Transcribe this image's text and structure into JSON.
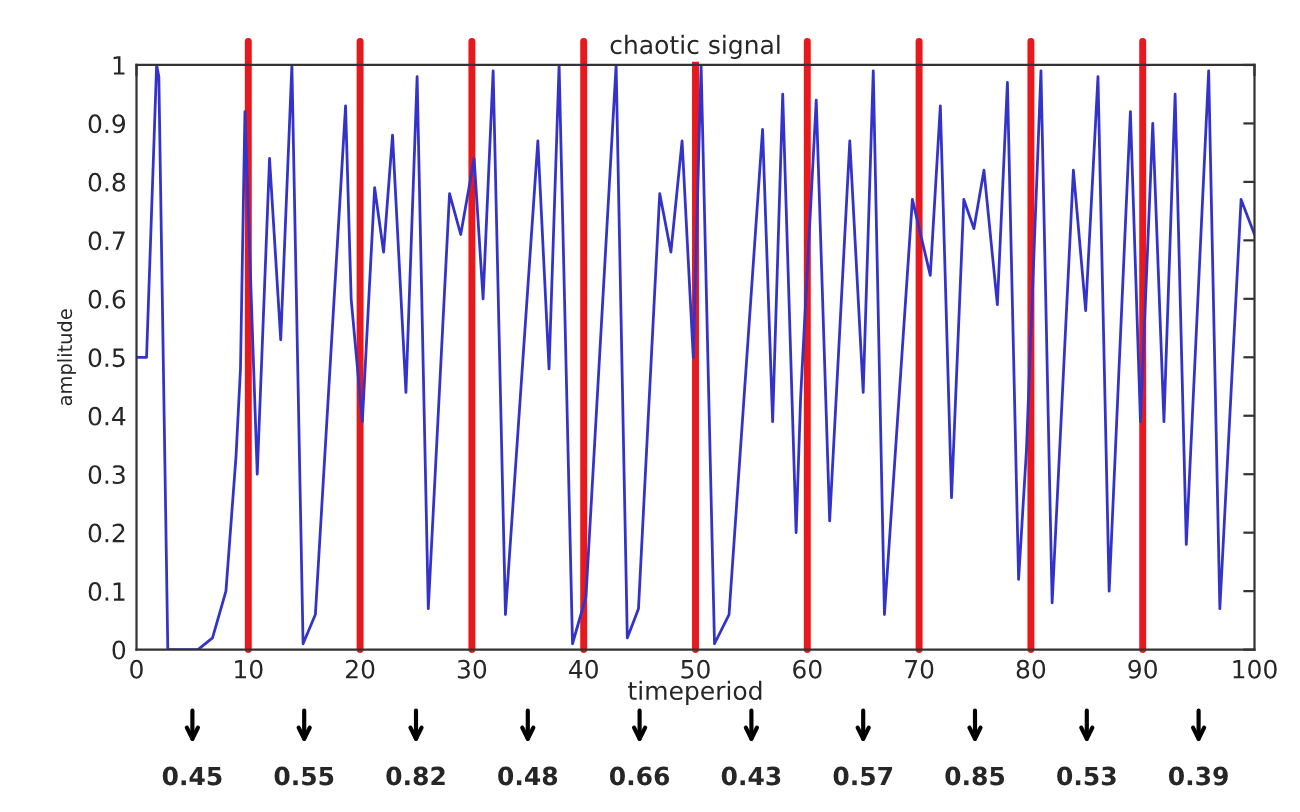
{
  "chart_data": {
    "type": "line",
    "title": "chaotic signal",
    "xlabel": "timeperiod",
    "ylabel": "amplitude",
    "x": [
      0,
      0.9,
      1.8,
      2.0,
      2.8,
      5.5,
      6.8,
      8.0,
      8.9,
      9.3,
      9.7,
      10.8,
      11.9,
      12.9,
      13.9,
      14.9,
      16.0,
      18.7,
      19.2,
      20.2,
      21.3,
      22.1,
      22.9,
      24.1,
      25.1,
      26.1,
      28.0,
      29.0,
      30.2,
      31.0,
      31.9,
      33.0,
      35.9,
      36.9,
      37.8,
      39.0,
      40.2,
      42.9,
      43.9,
      44.9,
      46.8,
      47.8,
      48.8,
      49.8,
      50.5,
      51.7,
      53.0,
      56.0,
      56.9,
      57.8,
      59.0,
      59.4,
      60.8,
      62.0,
      63.8,
      65.0,
      65.9,
      66.9,
      69.4,
      71.0,
      71.9,
      72.9,
      74.0,
      74.9,
      75.8,
      77.0,
      77.9,
      78.9,
      79.6,
      80.9,
      81.9,
      83.8,
      84.9,
      86.0,
      87.0,
      88.9,
      89.8,
      90.9,
      91.9,
      92.9,
      93.9,
      95.9,
      96.9,
      98.8,
      100
    ],
    "series": [
      {
        "color": "#3333cc",
        "values": [
          0.5,
          0.5,
          1.0,
          0.98,
          0,
          0,
          0.02,
          0.1,
          0.33,
          0.48,
          0.92,
          0.3,
          0.84,
          0.53,
          1.0,
          0.01,
          0.06,
          0.93,
          0.6,
          0.39,
          0.79,
          0.68,
          0.88,
          0.44,
          0.98,
          0.07,
          0.78,
          0.71,
          0.84,
          0.6,
          0.99,
          0.06,
          0.87,
          0.48,
          1.0,
          0.01,
          0.09,
          1.0,
          0.02,
          0.07,
          0.78,
          0.68,
          0.87,
          0.5,
          1.0,
          0.01,
          0.06,
          0.89,
          0.39,
          0.95,
          0.2,
          0.43,
          0.94,
          0.22,
          0.87,
          0.44,
          0.99,
          0.06,
          0.77,
          0.64,
          0.93,
          0.26,
          0.77,
          0.72,
          0.82,
          0.59,
          0.97,
          0.12,
          0.34,
          0.99,
          0.08,
          0.82,
          0.58,
          0.98,
          0.1,
          0.92,
          0.39,
          0.9,
          0.39,
          0.95,
          0.18,
          0.99,
          0.07,
          0.77,
          0.71
        ]
      }
    ],
    "xlim": [
      0,
      100
    ],
    "ylim": [
      0,
      1
    ],
    "xticks": [
      0,
      10,
      20,
      30,
      40,
      50,
      60,
      70,
      80,
      90,
      100
    ],
    "yticks": [
      0,
      0.1,
      0.2,
      0.3,
      0.4,
      0.5,
      0.6,
      0.7,
      0.8,
      0.9,
      1
    ],
    "ref_lines": [
      {
        "axis": "x",
        "value": 10,
        "color": "#e8191c"
      },
      {
        "axis": "x",
        "value": 20,
        "color": "#e8191c"
      },
      {
        "axis": "x",
        "value": 30,
        "color": "#e8191c"
      },
      {
        "axis": "x",
        "value": 40,
        "color": "#e8191c"
      },
      {
        "axis": "x",
        "value": 50,
        "color": "#e8191c"
      },
      {
        "axis": "x",
        "value": 60,
        "color": "#e8191c"
      },
      {
        "axis": "x",
        "value": 70,
        "color": "#e8191c"
      },
      {
        "axis": "x",
        "value": 80,
        "color": "#e8191c"
      },
      {
        "axis": "x",
        "value": 90,
        "color": "#e8191c"
      }
    ],
    "annotations": [
      "0.45",
      "0.55",
      "0.82",
      "0.48",
      "0.66",
      "0.43",
      "0.57",
      "0.85",
      "0.53",
      "0.39"
    ],
    "grid": false,
    "marker": "none",
    "line_style": "solid"
  }
}
